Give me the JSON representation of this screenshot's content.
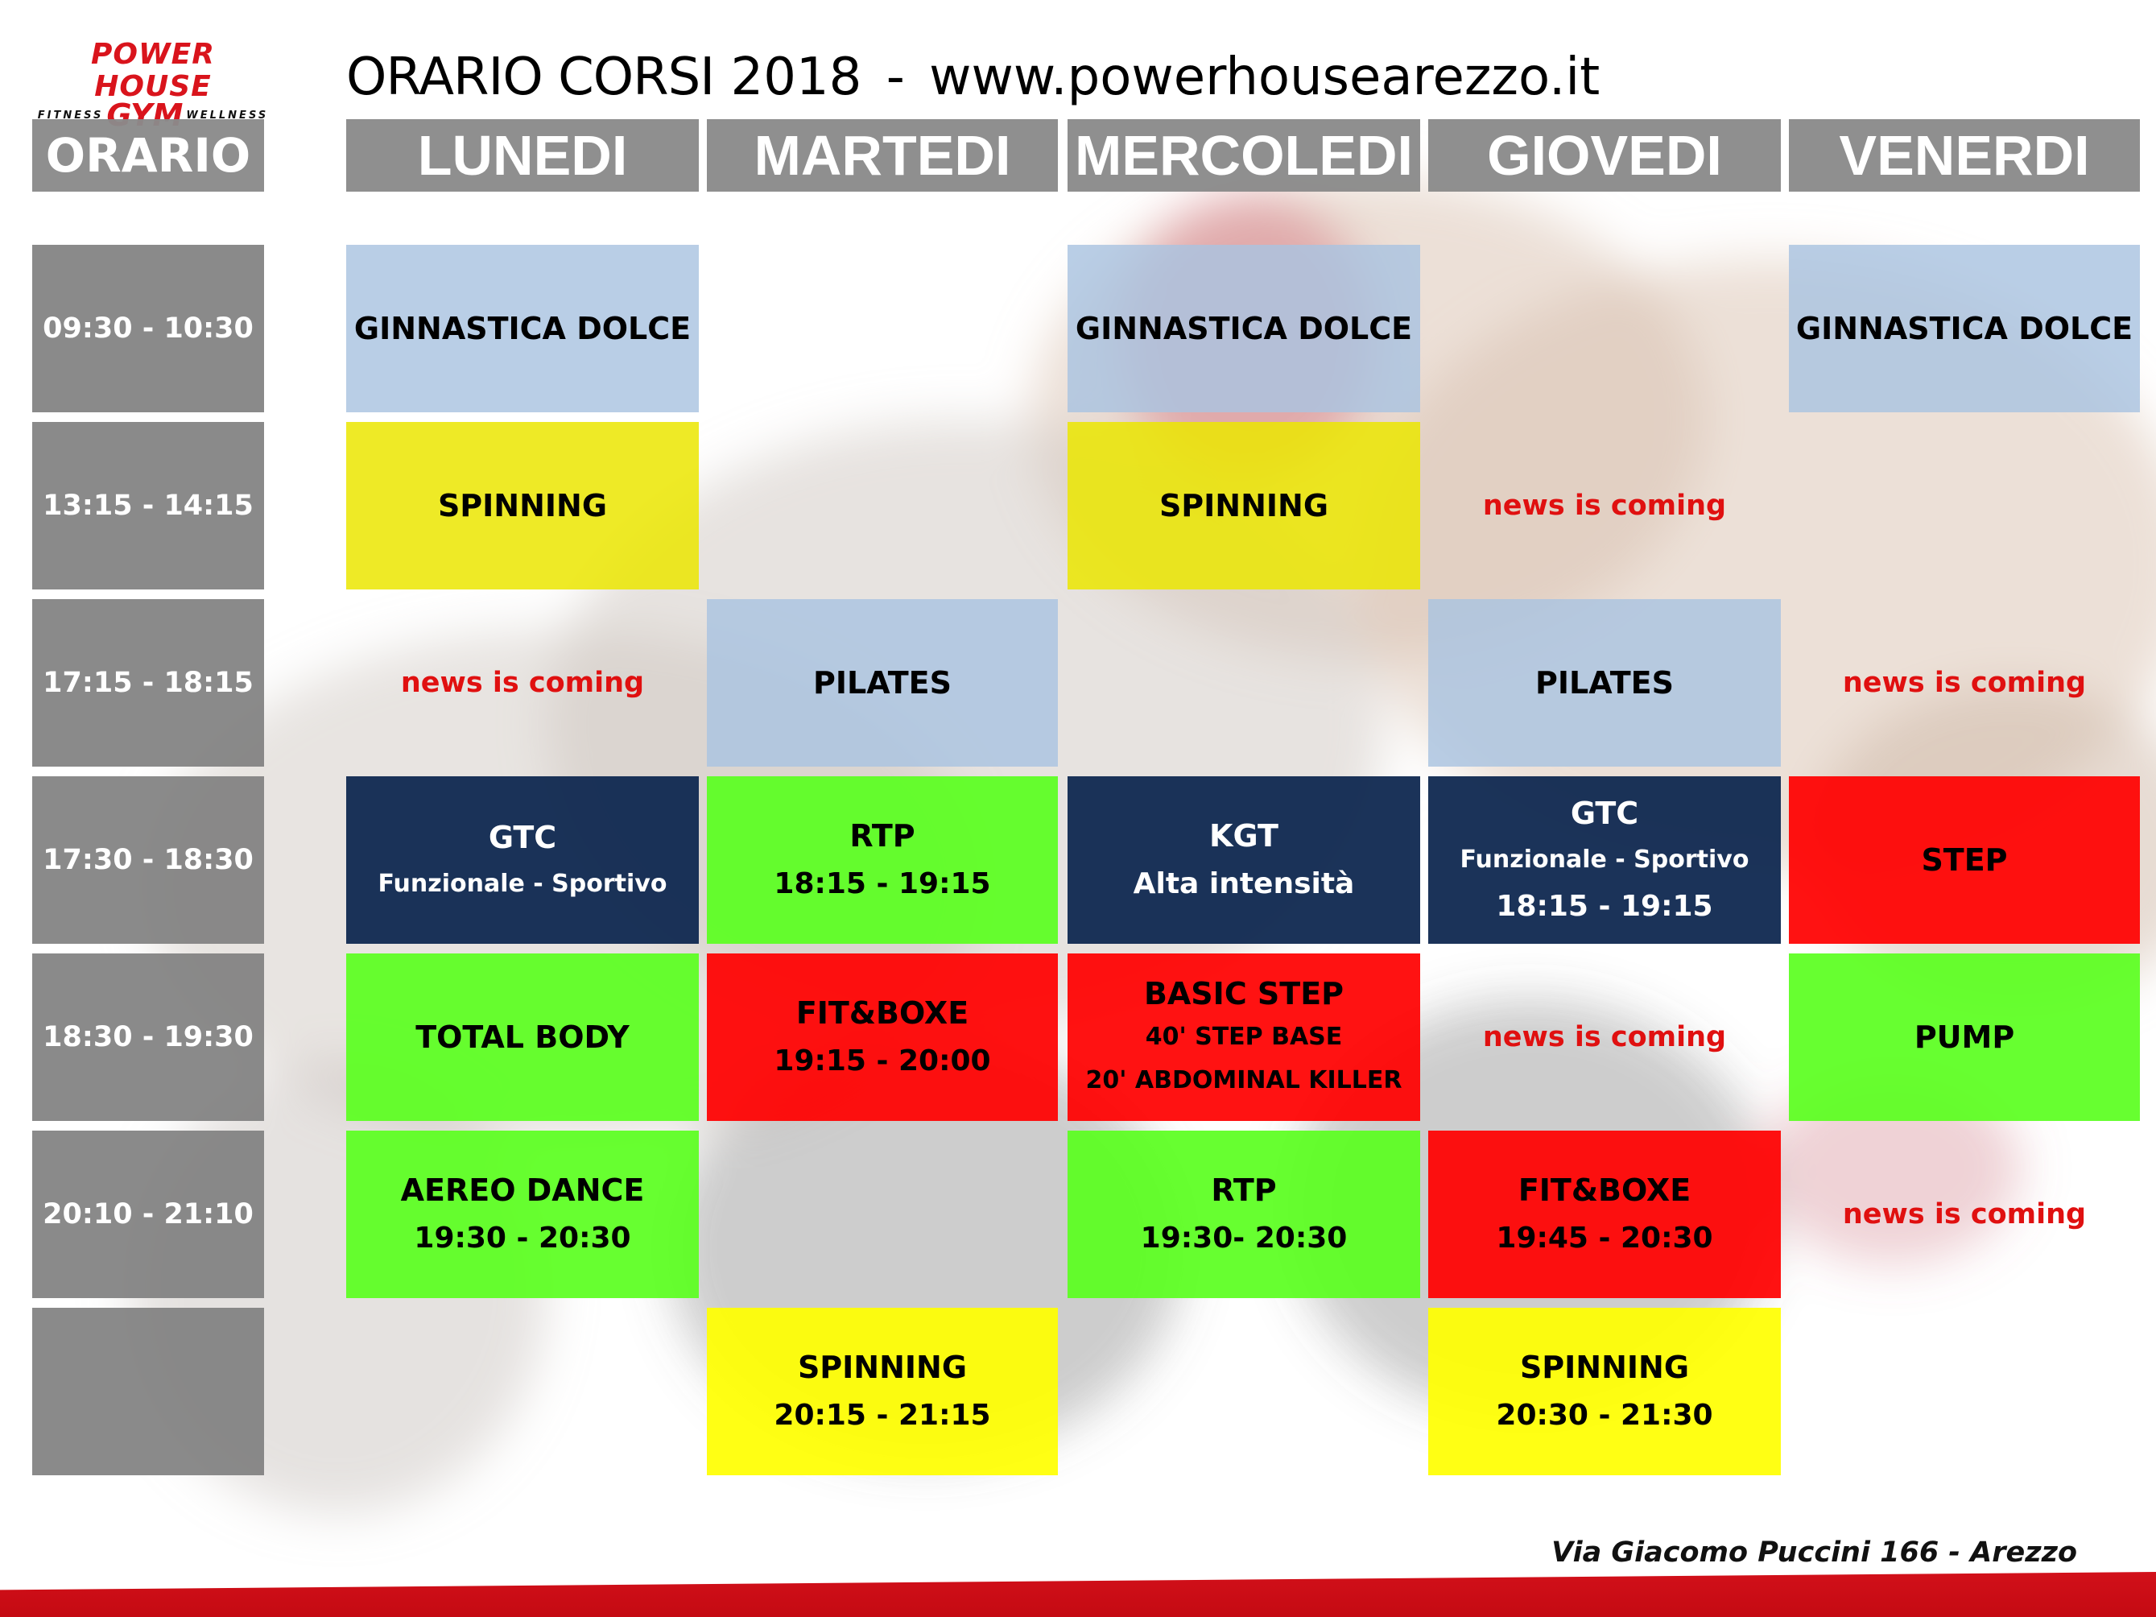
{
  "logo": {
    "line1": "POWER HOUSE",
    "left_word": "FITNESS",
    "center_word": "GYM",
    "right_word": "WELLNESS"
  },
  "title": {
    "main": "ORARIO CORSI",
    "year": "2018",
    "separator": "-",
    "url": "www.powerhousearezzo.it"
  },
  "headers": {
    "time": "ORARIO",
    "days": [
      "LUNEDI",
      "MARTEDI",
      "MERCOLEDI",
      "GIOVEDI",
      "VENERDI"
    ]
  },
  "time_slots": [
    "09:30 - 10:30",
    "13:15 - 14:15",
    "17:15 - 18:15",
    "17:30 - 18:30",
    "18:30 - 19:30",
    "20:10 - 21:10",
    ""
  ],
  "schedule": {
    "lunedi": {
      "r0": {
        "l1": "GINNASTICA DOLCE"
      },
      "r1": {
        "l1": "SPINNING"
      },
      "r2": {
        "news": "news is coming"
      },
      "r3": {
        "l1": "GTC",
        "l2": "Funzionale - Sportivo"
      },
      "r4": {
        "l1": "TOTAL BODY"
      },
      "r5": {
        "l1": "AEREO DANCE",
        "l2": "19:30 - 20:30"
      }
    },
    "martedi": {
      "r2": {
        "l1": "PILATES"
      },
      "r3": {
        "l1": "RTP",
        "l2": "18:15 - 19:15"
      },
      "r4": {
        "l1": "FIT&BOXE",
        "l2": "19:15 - 20:00"
      },
      "r6": {
        "l1": "SPINNING",
        "l2": "20:15 - 21:15"
      }
    },
    "mercoledi": {
      "r0": {
        "l1": "GINNASTICA DOLCE"
      },
      "r1": {
        "l1": "SPINNING"
      },
      "r3": {
        "l1": "KGT",
        "l2": "Alta intensità"
      },
      "r4": {
        "l1": "BASIC STEP",
        "l2": "40' STEP BASE",
        "l3": "20' ABDOMINAL KILLER"
      },
      "r5": {
        "l1": "RTP",
        "l2": "19:30- 20:30"
      }
    },
    "giovedi": {
      "r1": {
        "news": "news is coming"
      },
      "r2": {
        "l1": "PILATES"
      },
      "r3": {
        "l1": "GTC",
        "l2": "Funzionale - Sportivo",
        "l3": "18:15 - 19:15"
      },
      "r4": {
        "news": "news is coming"
      },
      "r5": {
        "l1": "FIT&BOXE",
        "l2": "19:45 - 20:30"
      },
      "r6": {
        "l1": "SPINNING",
        "l2": "20:30 - 21:30"
      }
    },
    "venerdi": {
      "r0": {
        "l1": "GINNASTICA DOLCE"
      },
      "r2": {
        "news": "news is coming"
      },
      "r3": {
        "l1": "STEP"
      },
      "r4": {
        "l1": "PUMP"
      },
      "r5": {
        "news": "news is coming"
      }
    }
  },
  "address": "Via Giacomo Puccini 166 - Arezzo",
  "colors": {
    "brand_red": "#d9141c",
    "header_gray": "#8a8a8a",
    "news_red": "#e01010",
    "light_blue": "#aac3e1",
    "yellow": "#ebe600",
    "navy": "#0f2850",
    "green": "#5aff1e",
    "red": "#ff0000"
  }
}
